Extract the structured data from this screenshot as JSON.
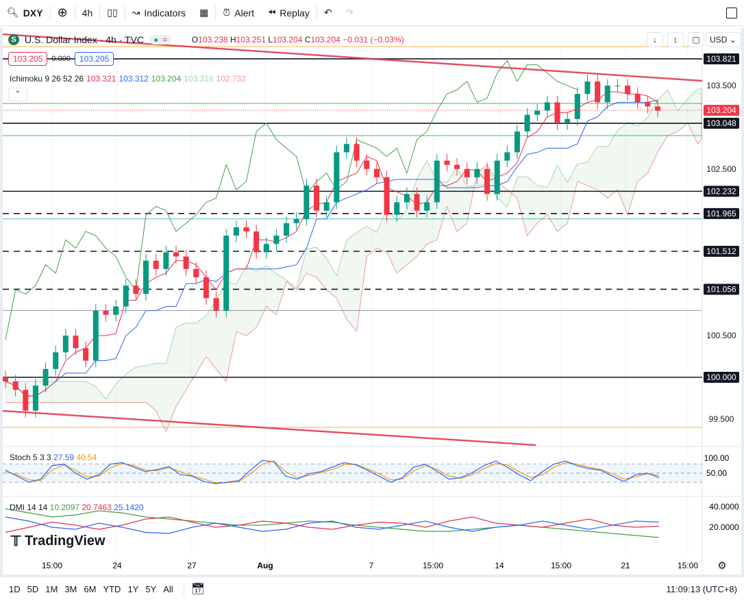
{
  "toolbar": {
    "symbol": "DXY",
    "interval": "4h",
    "indicators": "Indicators",
    "alert": "Alert",
    "replay": "Replay"
  },
  "legend": {
    "title": "U.S. Dollar Index · 4h · TVC",
    "open_label": "O",
    "open": "103.238",
    "high_label": "H",
    "high": "103.251",
    "low_label": "L",
    "low": "103.204",
    "close_label": "C",
    "close": "103.204",
    "change": "−0.031 (−0.03%)",
    "bid": "103.205",
    "spread": "0.000",
    "ask": "103.205"
  },
  "ichimoku": {
    "label": "Ichimoku 9 26 52 26",
    "v1": "103.321",
    "v2": "103.312",
    "v3": "103.204",
    "v4": "103.316",
    "v5": "102.732"
  },
  "currency": "USD",
  "stoch": {
    "label": "Stoch 5 3 3",
    "k": "27.59",
    "d": "40.54"
  },
  "dmi": {
    "label": "DMI 14 14",
    "adx": "10.2097",
    "plus": "20.7463",
    "minus": "25.1420"
  },
  "brand": "TradingView",
  "ranges": [
    "1D",
    "5D",
    "1M",
    "3M",
    "6M",
    "YTD",
    "1Y",
    "5Y",
    "All"
  ],
  "clock": "11:09:13 (UTC+8)",
  "colors": {
    "up": "#089981",
    "down": "#f23645",
    "ichi_conv": "#e0314b",
    "ichi_base": "#2962ff",
    "lagging": "#43a047"
  },
  "chart_data": {
    "type": "candlestick",
    "price_ticks": [
      "103.500",
      "102.500",
      "100.500",
      "99.500"
    ],
    "level_labels": [
      {
        "v": 103.821,
        "t": "103.821",
        "style": "solid"
      },
      {
        "v": 103.048,
        "t": "103.048",
        "style": "solid"
      },
      {
        "v": 102.232,
        "t": "102.232",
        "style": "solid"
      },
      {
        "v": 101.965,
        "t": "101.965",
        "style": "dashed"
      },
      {
        "v": 101.512,
        "t": "101.512",
        "style": "dashed"
      },
      {
        "v": 101.056,
        "t": "101.056",
        "style": "dashed"
      },
      {
        "v": 100.0,
        "t": "100.000",
        "style": "solid"
      }
    ],
    "last_price": {
      "v": 103.204,
      "t": "103.204"
    },
    "x_labels": [
      "15:00",
      "24",
      "27",
      "Aug",
      "7",
      "15:00",
      "14",
      "15:00",
      "21",
      "15:00"
    ],
    "closes": [
      99.95,
      99.85,
      99.6,
      99.9,
      100.1,
      100.3,
      100.5,
      100.35,
      100.2,
      100.8,
      100.75,
      100.85,
      101.1,
      101.0,
      101.4,
      101.3,
      101.5,
      101.45,
      101.3,
      101.2,
      100.95,
      100.8,
      101.7,
      101.8,
      101.75,
      101.5,
      101.6,
      101.7,
      101.85,
      101.9,
      102.3,
      102.0,
      102.1,
      102.7,
      102.8,
      102.6,
      102.5,
      102.4,
      101.95,
      102.1,
      102.2,
      102.0,
      102.1,
      102.6,
      102.55,
      102.5,
      102.4,
      102.5,
      102.2,
      102.6,
      102.7,
      102.95,
      103.15,
      103.2,
      103.3,
      103.05,
      103.1,
      103.4,
      103.55,
      103.3,
      103.5,
      103.5,
      103.4,
      103.3,
      103.25,
      103.2
    ],
    "stoch_k": [
      60,
      40,
      20,
      30,
      75,
      80,
      50,
      30,
      45,
      80,
      85,
      70,
      55,
      62,
      72,
      45,
      40,
      22,
      15,
      20,
      25,
      60,
      92,
      88,
      40,
      30,
      48,
      55,
      70,
      85,
      78,
      60,
      40,
      20,
      35,
      70,
      80,
      55,
      30,
      35,
      52,
      75,
      90,
      70,
      45,
      25,
      55,
      80,
      90,
      75,
      65,
      60,
      40,
      22,
      45,
      50,
      35
    ],
    "stoch_d": [
      55,
      45,
      28,
      25,
      60,
      78,
      60,
      38,
      40,
      68,
      82,
      75,
      60,
      58,
      68,
      55,
      42,
      30,
      18,
      18,
      22,
      48,
      80,
      90,
      55,
      35,
      42,
      52,
      62,
      78,
      80,
      65,
      48,
      28,
      30,
      58,
      75,
      62,
      40,
      33,
      45,
      65,
      82,
      78,
      55,
      35,
      45,
      70,
      85,
      80,
      70,
      62,
      48,
      30,
      38,
      48,
      42
    ],
    "dmi_adx": [
      38,
      34,
      30,
      32,
      36,
      34,
      30,
      28,
      26,
      24,
      22,
      22,
      24,
      26,
      25,
      22,
      20,
      18,
      16,
      16,
      18,
      20,
      22,
      20,
      18,
      16,
      14,
      12,
      10
    ],
    "dmi_plus": [
      15,
      20,
      25,
      22,
      18,
      22,
      28,
      30,
      25,
      20,
      22,
      26,
      24,
      20,
      18,
      22,
      25,
      24,
      20,
      26,
      30,
      24,
      22,
      20,
      24,
      28,
      22,
      20,
      21
    ],
    "dmi_minus": [
      30,
      26,
      20,
      18,
      24,
      20,
      15,
      14,
      20,
      24,
      20,
      16,
      18,
      24,
      26,
      20,
      18,
      22,
      26,
      20,
      16,
      20,
      22,
      26,
      22,
      18,
      22,
      26,
      25
    ]
  }
}
